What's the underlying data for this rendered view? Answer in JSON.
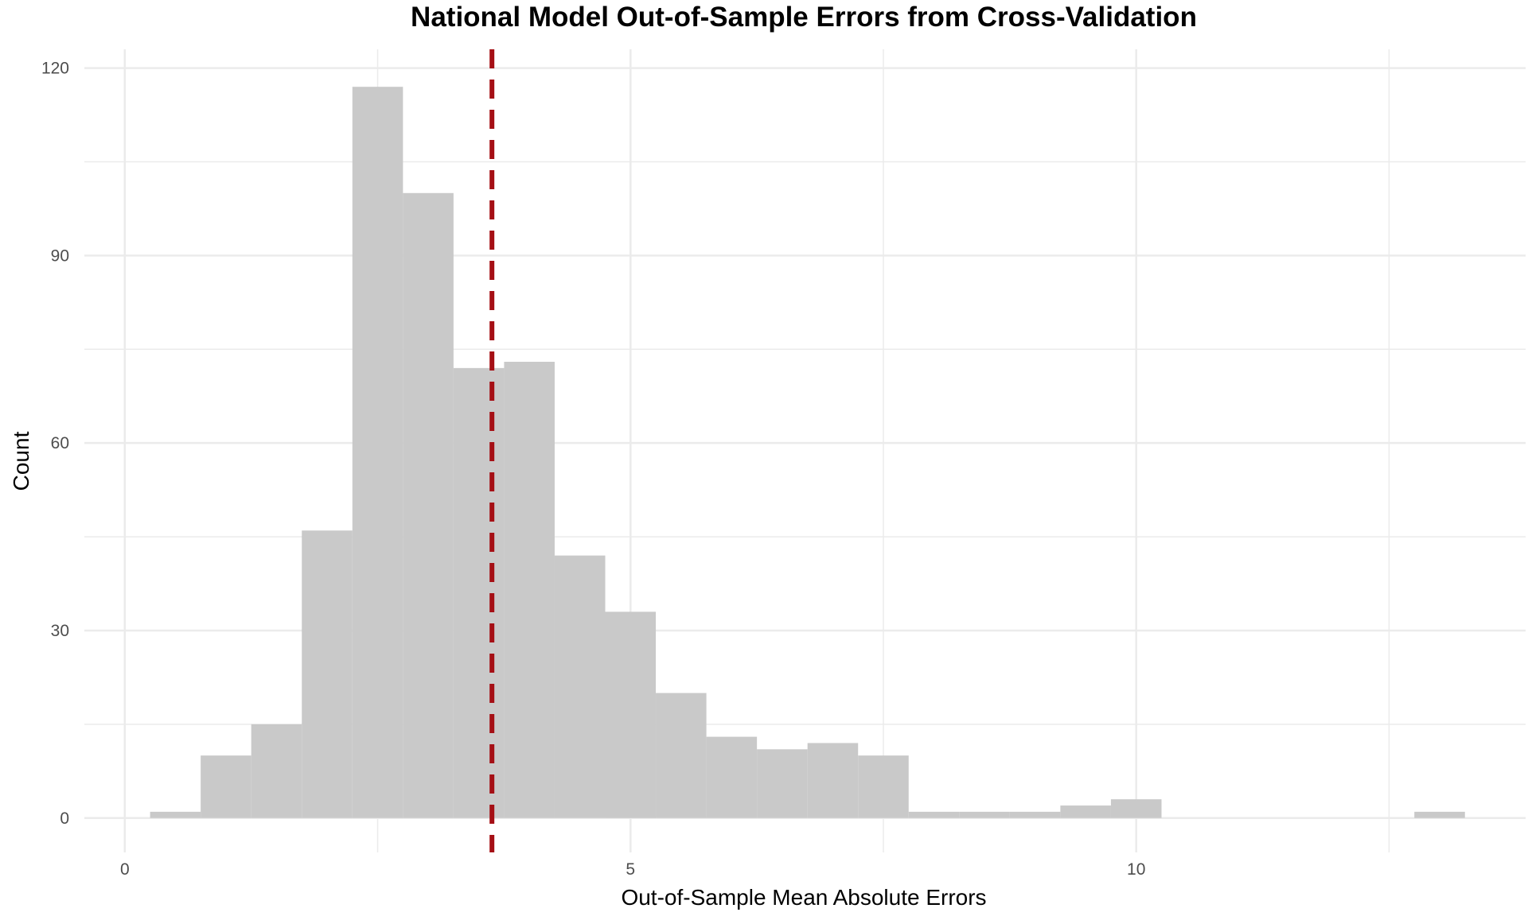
{
  "chart_data": {
    "type": "bar",
    "title": "National Model Out-of-Sample Errors from Cross-Validation",
    "xlabel": "Out-of-Sample Mean Absolute Errors",
    "ylabel": "Count",
    "xlim": [
      -0.4,
      13.85
    ],
    "ylim": [
      -5.5,
      123
    ],
    "x_ticks": [
      0,
      5,
      10
    ],
    "x_tick_labels": [
      "0",
      "5",
      "10"
    ],
    "y_ticks": [
      0,
      30,
      60,
      90,
      120
    ],
    "y_tick_labels": [
      "0",
      "30",
      "60",
      "90",
      "120"
    ],
    "bin_width": 0.5,
    "bin_centers": [
      0.5,
      1.0,
      1.5,
      2.0,
      2.5,
      3.0,
      3.5,
      4.0,
      4.5,
      5.0,
      5.5,
      6.0,
      6.5,
      7.0,
      7.5,
      8.0,
      8.5,
      9.0,
      9.5,
      10.0,
      10.5,
      11.0,
      11.5,
      12.0,
      12.5,
      13.0
    ],
    "values": [
      1,
      10,
      15,
      46,
      117,
      100,
      72,
      73,
      42,
      33,
      20,
      13,
      11,
      12,
      10,
      1,
      1,
      1,
      2,
      3,
      0,
      0,
      0,
      0,
      0,
      1
    ],
    "reference_line": {
      "x": 3.63,
      "style": "dashed",
      "color": "#a50f15"
    },
    "grid": true,
    "bar_color": "#c9c9c9",
    "grid_color": "#ebebeb"
  }
}
